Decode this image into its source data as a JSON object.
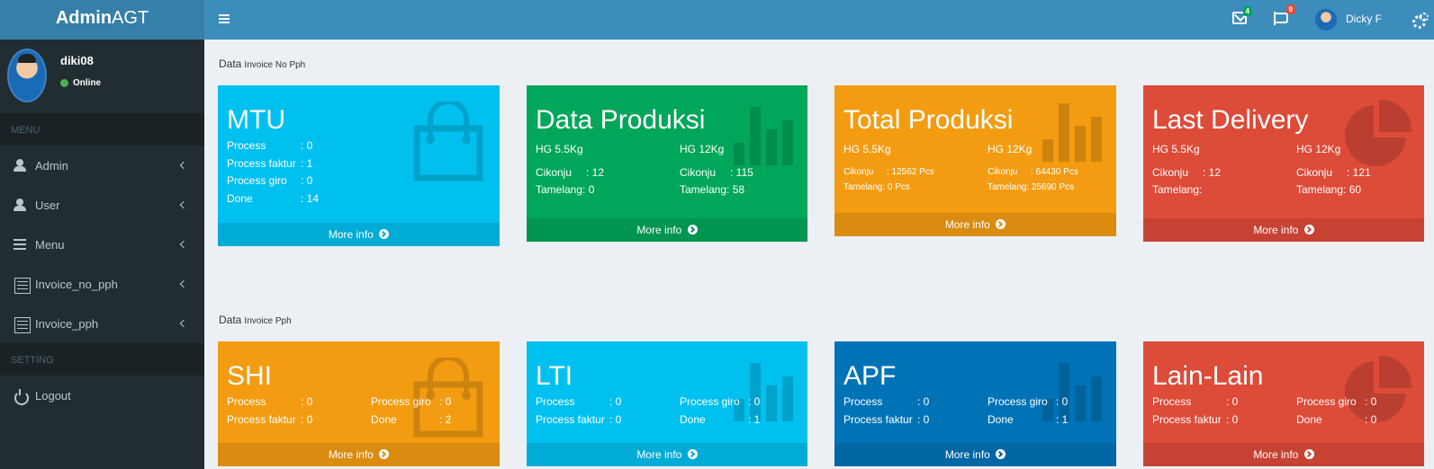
{
  "sidebar": {
    "logo_bold": "Admin",
    "logo_rest": "AGT",
    "user_name": "diki08",
    "user_status": "Online",
    "menu_header": "MENU",
    "setting_header": "SETTING",
    "items": [
      {
        "label": "Admin",
        "icon": "user-icon"
      },
      {
        "label": "User",
        "icon": "user-icon"
      },
      {
        "label": "Menu",
        "icon": "list-icon"
      },
      {
        "label": "Invoice_no_pph",
        "icon": "document-icon"
      },
      {
        "label": "Invoice_pph",
        "icon": "document-icon"
      }
    ],
    "logout_label": "Logout"
  },
  "navbar": {
    "mail_badge": "4",
    "flag_badge": "9",
    "username": "Dicky F"
  },
  "sections": {
    "no_pph": {
      "l1": "Data",
      "l2": "Invoice No Pph"
    },
    "pph": {
      "l1": "Data",
      "l2": "Invoice Pph"
    }
  },
  "boxes": {
    "mtu": {
      "title": "MTU",
      "rows": [
        {
          "k": "Process",
          "v": ": 0"
        },
        {
          "k": "Process faktur",
          "v": ": 1"
        },
        {
          "k": "Process giro",
          "v": ": 0"
        },
        {
          "k": "Done",
          "v": ": 14"
        }
      ],
      "footer": "More info"
    },
    "data_produksi": {
      "title": "Data Produksi",
      "hg1": "HG 5.5Kg",
      "hg2": "HG 12Kg",
      "c1": [
        {
          "k": "Cikonju",
          "v": ": 12"
        },
        {
          "k": "Tamelang",
          "v": ": 0"
        }
      ],
      "c2": [
        {
          "k": "Cikonju",
          "v": ": 115"
        },
        {
          "k": "Tamelang",
          "v": ": 58"
        }
      ],
      "footer": "More info"
    },
    "total_produksi": {
      "title": "Total Produksi",
      "hg1": "HG 5.5Kg",
      "hg2": "HG 12Kg",
      "c1": [
        {
          "k": "Cikonju",
          "v": ": 12562 Pcs"
        },
        {
          "k": "Tamelang",
          "v": ": 0 Pcs"
        }
      ],
      "c2": [
        {
          "k": "Cikonju",
          "v": ": 64430 Pcs"
        },
        {
          "k": "Tamelang",
          "v": ": 25690 Pcs"
        }
      ],
      "footer": "More info"
    },
    "last_delivery": {
      "title": "Last Delivery",
      "hg1": "HG 5.5Kg",
      "hg2": "HG 12Kg",
      "c1": [
        {
          "k": "Cikonju",
          "v": ": 12"
        },
        {
          "k": "Tamelang",
          "v": ":"
        }
      ],
      "c2": [
        {
          "k": "Cikonju",
          "v": ": 121"
        },
        {
          "k": "Tamelang",
          "v": ": 60"
        }
      ],
      "footer": "More info"
    },
    "shi": {
      "title": "SHI",
      "c1": [
        {
          "k": "Process",
          "v": ": 0"
        },
        {
          "k": "Process faktur",
          "v": ": 0"
        }
      ],
      "c2": [
        {
          "k": "Process giro",
          "v": ": 0"
        },
        {
          "k": "Done",
          "v": ": 2"
        }
      ],
      "footer": "More info"
    },
    "lti": {
      "title": "LTI",
      "c1": [
        {
          "k": "Process",
          "v": ": 0"
        },
        {
          "k": "Process faktur",
          "v": ": 0"
        }
      ],
      "c2": [
        {
          "k": "Process giro",
          "v": ": 0"
        },
        {
          "k": "Done",
          "v": ": 1"
        }
      ],
      "footer": "More info"
    },
    "apf": {
      "title": "APF",
      "c1": [
        {
          "k": "Process",
          "v": ": 0"
        },
        {
          "k": "Process faktur",
          "v": ": 0"
        }
      ],
      "c2": [
        {
          "k": "Process giro",
          "v": ": 0"
        },
        {
          "k": "Done",
          "v": ": 1"
        }
      ],
      "footer": "More info"
    },
    "lain_lain": {
      "title": "Lain-Lain",
      "c1": [
        {
          "k": "Process",
          "v": ": 0"
        },
        {
          "k": "Process faktur",
          "v": ": 0"
        }
      ],
      "c2": [
        {
          "k": "Process giro",
          "v": ": 0"
        },
        {
          "k": "Done",
          "v": ": 0"
        }
      ],
      "footer": "More info"
    }
  },
  "colors": {
    "aqua": "#00c0ef",
    "green": "#00a65a",
    "yellow": "#f39c12",
    "red": "#dd4b39",
    "blue": "#0073b7",
    "sidebar": "#222d32",
    "navbar": "#3c8dbc"
  }
}
